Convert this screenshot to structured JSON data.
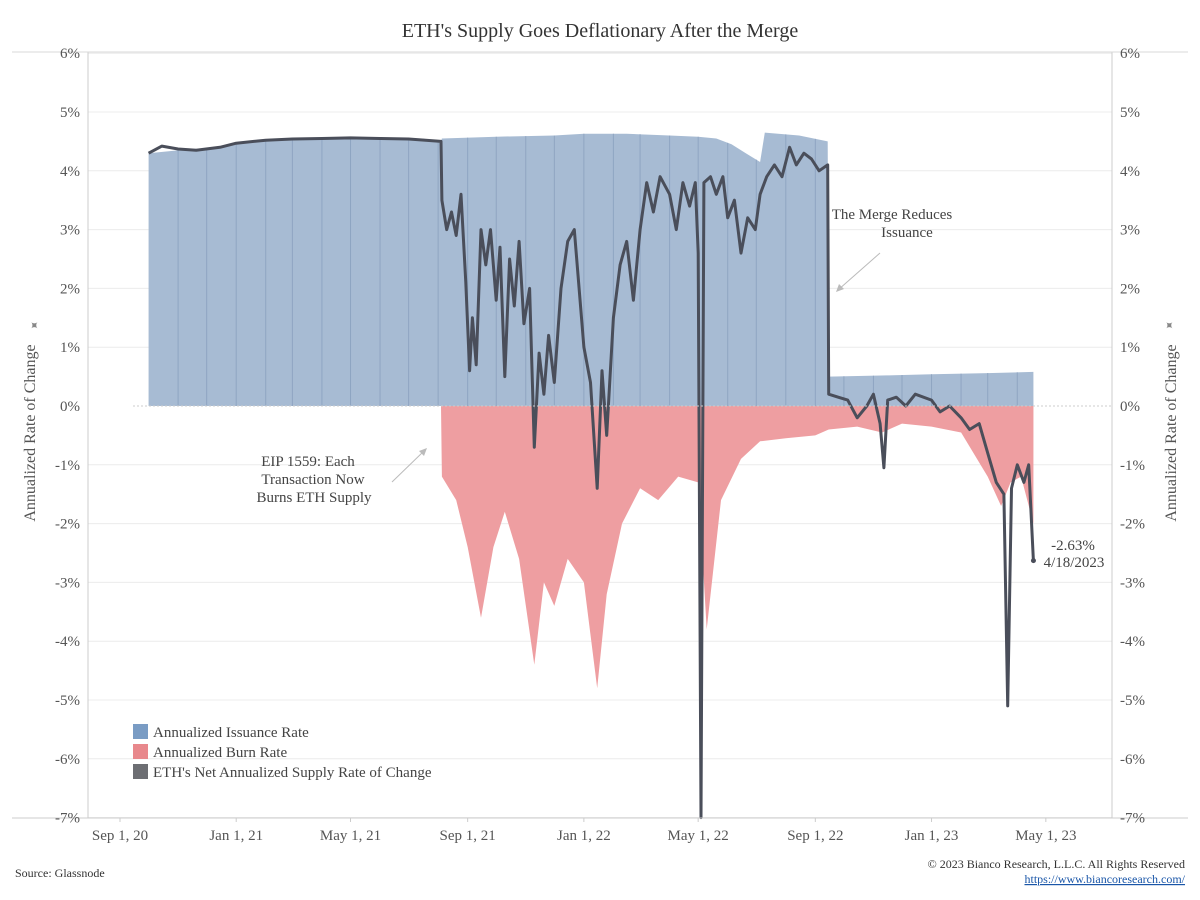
{
  "chart_data": {
    "type": "area",
    "title": "ETH's Supply Goes Deflationary After the Merge",
    "ylabel": "Annualized Rate of Change",
    "y_ticks": [
      "6%",
      "5%",
      "4%",
      "3%",
      "2%",
      "1%",
      "0%",
      "-1%",
      "-2%",
      "-3%",
      "-4%",
      "-5%",
      "-6%",
      "-7%"
    ],
    "ylim": [
      -7,
      6
    ],
    "x_ticks": [
      {
        "label": "Sep 1, 20",
        "date": "2020-09-01"
      },
      {
        "label": "Jan 1, 21",
        "date": "2021-01-01"
      },
      {
        "label": "May 1, 21",
        "date": "2021-05-01"
      },
      {
        "label": "Sep 1, 21",
        "date": "2021-09-01"
      },
      {
        "label": "Jan 1, 22",
        "date": "2022-01-01"
      },
      {
        "label": "May 1, 22",
        "date": "2022-05-01"
      },
      {
        "label": "Sep 1, 22",
        "date": "2022-09-01"
      },
      {
        "label": "Jan 1, 23",
        "date": "2023-01-01"
      },
      {
        "label": "May 1, 23",
        "date": "2023-05-01"
      }
    ],
    "xlim": [
      "2020-08-01",
      "2023-06-06"
    ],
    "grid": true,
    "legend_position": "bottom-left",
    "series": [
      {
        "name": "Annualized Issuance Rate",
        "color": "#a7bbd3",
        "legend_color": "#7a9cc4",
        "points": [
          [
            "2020-10-01",
            4.3
          ],
          [
            "2020-11-15",
            4.37
          ],
          [
            "2020-12-20",
            4.4
          ],
          [
            "2021-01-15",
            4.5
          ],
          [
            "2021-03-01",
            4.53
          ],
          [
            "2021-04-15",
            4.55
          ],
          [
            "2021-06-01",
            4.55
          ],
          [
            "2021-07-15",
            4.55
          ],
          [
            "2021-08-04",
            4.5
          ],
          [
            "2021-08-05",
            4.55
          ],
          [
            "2021-10-01",
            4.58
          ],
          [
            "2021-12-01",
            4.6
          ],
          [
            "2022-01-01",
            4.63
          ],
          [
            "2022-02-15",
            4.63
          ],
          [
            "2022-04-01",
            4.6
          ],
          [
            "2022-05-01",
            4.58
          ],
          [
            "2022-05-20",
            4.55
          ],
          [
            "2022-06-05",
            4.45
          ],
          [
            "2022-06-20",
            4.3
          ],
          [
            "2022-07-05",
            4.15
          ],
          [
            "2022-07-10",
            4.65
          ],
          [
            "2022-08-15",
            4.6
          ],
          [
            "2022-09-14",
            4.5
          ],
          [
            "2022-09-15",
            0.5
          ],
          [
            "2022-11-15",
            0.52
          ],
          [
            "2023-01-01",
            0.54
          ],
          [
            "2023-03-01",
            0.56
          ],
          [
            "2023-04-18",
            0.58
          ]
        ]
      },
      {
        "name": "Annualized Burn Rate",
        "color": "#ee9ea1",
        "legend_color": "#e8888c",
        "points": [
          [
            "2021-08-04",
            0.0
          ],
          [
            "2021-08-05",
            -1.2
          ],
          [
            "2021-08-20",
            -1.6
          ],
          [
            "2021-09-01",
            -2.4
          ],
          [
            "2021-09-15",
            -3.6
          ],
          [
            "2021-09-28",
            -2.4
          ],
          [
            "2021-10-10",
            -1.8
          ],
          [
            "2021-10-25",
            -2.6
          ],
          [
            "2021-11-10",
            -4.4
          ],
          [
            "2021-11-20",
            -3.0
          ],
          [
            "2021-12-01",
            -3.4
          ],
          [
            "2021-12-15",
            -2.6
          ],
          [
            "2022-01-01",
            -3.0
          ],
          [
            "2022-01-15",
            -4.8
          ],
          [
            "2022-01-25",
            -3.2
          ],
          [
            "2022-02-10",
            -2.0
          ],
          [
            "2022-03-01",
            -1.4
          ],
          [
            "2022-03-20",
            -1.6
          ],
          [
            "2022-04-10",
            -1.2
          ],
          [
            "2022-05-01",
            -1.3
          ],
          [
            "2022-05-10",
            -3.8
          ],
          [
            "2022-05-25",
            -1.6
          ],
          [
            "2022-06-15",
            -0.9
          ],
          [
            "2022-07-05",
            -0.6
          ],
          [
            "2022-08-01",
            -0.55
          ],
          [
            "2022-09-01",
            -0.5
          ],
          [
            "2022-09-15",
            -0.4
          ],
          [
            "2022-10-15",
            -0.35
          ],
          [
            "2022-11-10",
            -0.45
          ],
          [
            "2022-12-01",
            -0.3
          ],
          [
            "2023-01-01",
            -0.35
          ],
          [
            "2023-02-01",
            -0.45
          ],
          [
            "2023-03-01",
            -1.2
          ],
          [
            "2023-03-15",
            -1.7
          ],
          [
            "2023-03-25",
            -1.3
          ],
          [
            "2023-04-05",
            -1.2
          ],
          [
            "2023-04-18",
            -2.0
          ]
        ]
      },
      {
        "name": "ETH's Net Annualized Supply Rate of Change",
        "color": "#4a4e5a",
        "legend_color": "#6d6e73",
        "points": [
          [
            "2020-10-01",
            4.3
          ],
          [
            "2020-10-15",
            4.42
          ],
          [
            "2020-11-01",
            4.37
          ],
          [
            "2020-11-20",
            4.35
          ],
          [
            "2020-12-15",
            4.4
          ],
          [
            "2021-01-01",
            4.47
          ],
          [
            "2021-02-01",
            4.52
          ],
          [
            "2021-03-01",
            4.54
          ],
          [
            "2021-04-01",
            4.55
          ],
          [
            "2021-05-01",
            4.56
          ],
          [
            "2021-06-01",
            4.55
          ],
          [
            "2021-07-01",
            4.54
          ],
          [
            "2021-08-04",
            4.5
          ],
          [
            "2021-08-05",
            3.5
          ],
          [
            "2021-08-10",
            3.0
          ],
          [
            "2021-08-15",
            3.3
          ],
          [
            "2021-08-20",
            2.9
          ],
          [
            "2021-08-25",
            3.6
          ],
          [
            "2021-08-30",
            2.1
          ],
          [
            "2021-09-03",
            0.6
          ],
          [
            "2021-09-06",
            1.5
          ],
          [
            "2021-09-10",
            0.7
          ],
          [
            "2021-09-15",
            3.0
          ],
          [
            "2021-09-20",
            2.4
          ],
          [
            "2021-09-25",
            3.0
          ],
          [
            "2021-10-01",
            1.8
          ],
          [
            "2021-10-05",
            2.7
          ],
          [
            "2021-10-10",
            0.5
          ],
          [
            "2021-10-15",
            2.5
          ],
          [
            "2021-10-20",
            1.7
          ],
          [
            "2021-10-25",
            2.8
          ],
          [
            "2021-10-30",
            1.4
          ],
          [
            "2021-11-05",
            2.0
          ],
          [
            "2021-11-10",
            -0.7
          ],
          [
            "2021-11-15",
            0.9
          ],
          [
            "2021-11-20",
            0.2
          ],
          [
            "2021-11-25",
            1.2
          ],
          [
            "2021-12-01",
            0.4
          ],
          [
            "2021-12-08",
            2.0
          ],
          [
            "2021-12-15",
            2.8
          ],
          [
            "2021-12-22",
            3.0
          ],
          [
            "2022-01-01",
            1.0
          ],
          [
            "2022-01-08",
            0.4
          ],
          [
            "2022-01-15",
            -1.4
          ],
          [
            "2022-01-20",
            0.6
          ],
          [
            "2022-01-25",
            -0.5
          ],
          [
            "2022-02-01",
            1.5
          ],
          [
            "2022-02-08",
            2.4
          ],
          [
            "2022-02-15",
            2.8
          ],
          [
            "2022-02-22",
            1.8
          ],
          [
            "2022-03-01",
            3.0
          ],
          [
            "2022-03-08",
            3.8
          ],
          [
            "2022-03-15",
            3.3
          ],
          [
            "2022-03-22",
            3.9
          ],
          [
            "2022-04-01",
            3.6
          ],
          [
            "2022-04-08",
            3.0
          ],
          [
            "2022-04-15",
            3.8
          ],
          [
            "2022-04-22",
            3.4
          ],
          [
            "2022-04-28",
            3.8
          ],
          [
            "2022-05-01",
            2.6
          ],
          [
            "2022-05-04",
            -7.0
          ],
          [
            "2022-05-07",
            3.8
          ],
          [
            "2022-05-14",
            3.9
          ],
          [
            "2022-05-20",
            3.6
          ],
          [
            "2022-05-27",
            3.9
          ],
          [
            "2022-06-01",
            3.2
          ],
          [
            "2022-06-08",
            3.5
          ],
          [
            "2022-06-15",
            2.6
          ],
          [
            "2022-06-22",
            3.2
          ],
          [
            "2022-06-30",
            3.0
          ],
          [
            "2022-07-05",
            3.6
          ],
          [
            "2022-07-12",
            3.9
          ],
          [
            "2022-07-20",
            4.1
          ],
          [
            "2022-07-28",
            3.9
          ],
          [
            "2022-08-05",
            4.4
          ],
          [
            "2022-08-12",
            4.1
          ],
          [
            "2022-08-20",
            4.3
          ],
          [
            "2022-08-28",
            4.2
          ],
          [
            "2022-09-05",
            4.0
          ],
          [
            "2022-09-14",
            4.1
          ],
          [
            "2022-09-15",
            0.2
          ],
          [
            "2022-09-25",
            0.15
          ],
          [
            "2022-10-05",
            0.1
          ],
          [
            "2022-10-15",
            -0.2
          ],
          [
            "2022-10-25",
            0.0
          ],
          [
            "2022-11-01",
            0.2
          ],
          [
            "2022-11-08",
            -0.3
          ],
          [
            "2022-11-12",
            -1.05
          ],
          [
            "2022-11-16",
            0.1
          ],
          [
            "2022-11-25",
            0.15
          ],
          [
            "2022-12-05",
            0.0
          ],
          [
            "2022-12-15",
            0.2
          ],
          [
            "2023-01-01",
            0.1
          ],
          [
            "2023-01-10",
            -0.1
          ],
          [
            "2023-01-20",
            0.0
          ],
          [
            "2023-02-01",
            -0.2
          ],
          [
            "2023-02-10",
            -0.4
          ],
          [
            "2023-02-20",
            -0.3
          ],
          [
            "2023-03-01",
            -0.8
          ],
          [
            "2023-03-10",
            -1.3
          ],
          [
            "2023-03-18",
            -1.5
          ],
          [
            "2023-03-22",
            -5.1
          ],
          [
            "2023-03-26",
            -1.4
          ],
          [
            "2023-04-01",
            -1.0
          ],
          [
            "2023-04-08",
            -1.3
          ],
          [
            "2023-04-13",
            -1.0
          ],
          [
            "2023-04-18",
            -2.63
          ]
        ]
      }
    ],
    "annotations": {
      "merge": [
        "The Merge Reduces",
        "Issuance"
      ],
      "eip": [
        "EIP 1559: Each",
        "Transaction Now",
        "Burns ETH Supply"
      ],
      "end_value": "-2.63%",
      "end_date": "4/18/2023"
    }
  },
  "footer": {
    "source": "Source: Glassnode",
    "copyright": "© 2023 Bianco Research, L.L.C. All Rights Reserved",
    "link": "https://www.biancoresearch.com/"
  }
}
